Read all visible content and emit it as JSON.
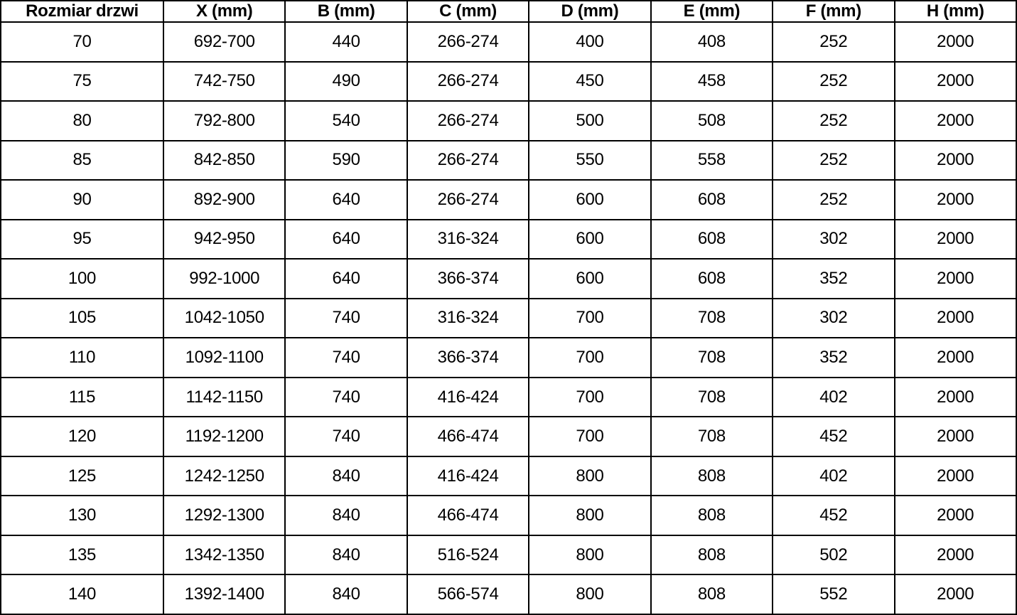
{
  "colors": {
    "border": "#000000",
    "text": "#000000",
    "background": "#ffffff"
  },
  "table": {
    "columns": [
      "Rozmiar drzwi",
      "X (mm)",
      "B (mm)",
      "C (mm)",
      "D (mm)",
      "E (mm)",
      "F (mm)",
      "H (mm)"
    ],
    "rows": [
      [
        "70",
        "692-700",
        "440",
        "266-274",
        "400",
        "408",
        "252",
        "2000"
      ],
      [
        "75",
        "742-750",
        "490",
        "266-274",
        "450",
        "458",
        "252",
        "2000"
      ],
      [
        "80",
        "792-800",
        "540",
        "266-274",
        "500",
        "508",
        "252",
        "2000"
      ],
      [
        "85",
        "842-850",
        "590",
        "266-274",
        "550",
        "558",
        "252",
        "2000"
      ],
      [
        "90",
        "892-900",
        "640",
        "266-274",
        "600",
        "608",
        "252",
        "2000"
      ],
      [
        "95",
        "942-950",
        "640",
        "316-324",
        "600",
        "608",
        "302",
        "2000"
      ],
      [
        "100",
        "992-1000",
        "640",
        "366-374",
        "600",
        "608",
        "352",
        "2000"
      ],
      [
        "105",
        "1042-1050",
        "740",
        "316-324",
        "700",
        "708",
        "302",
        "2000"
      ],
      [
        "110",
        "1092-1100",
        "740",
        "366-374",
        "700",
        "708",
        "352",
        "2000"
      ],
      [
        "115",
        "1142-1150",
        "740",
        "416-424",
        "700",
        "708",
        "402",
        "2000"
      ],
      [
        "120",
        "1192-1200",
        "740",
        "466-474",
        "700",
        "708",
        "452",
        "2000"
      ],
      [
        "125",
        "1242-1250",
        "840",
        "416-424",
        "800",
        "808",
        "402",
        "2000"
      ],
      [
        "130",
        "1292-1300",
        "840",
        "466-474",
        "800",
        "808",
        "452",
        "2000"
      ],
      [
        "135",
        "1342-1350",
        "840",
        "516-524",
        "800",
        "808",
        "502",
        "2000"
      ],
      [
        "140",
        "1392-1400",
        "840",
        "566-574",
        "800",
        "808",
        "552",
        "2000"
      ]
    ]
  }
}
